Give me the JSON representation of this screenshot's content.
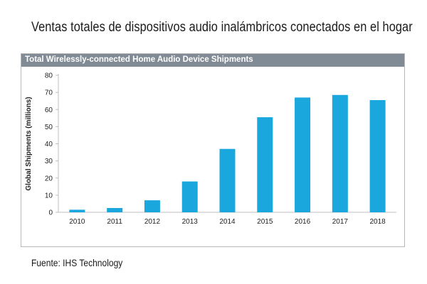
{
  "page_title": "Ventas totales de dispositivos audio inalámbricos conectados en el hogar",
  "source": "Fuente: IHS Technology",
  "colors": {
    "bar": "#1aa7dd",
    "header": "#808b95",
    "axis": "#bfbfbf"
  },
  "chart_data": {
    "type": "bar",
    "title": "Total Wirelessly-connected Home Audio Device Shipments",
    "xlabel": "",
    "ylabel": "Global Shipments (millions)",
    "categories": [
      "2010",
      "2011",
      "2012",
      "2013",
      "2014",
      "2015",
      "2016",
      "2017",
      "2018"
    ],
    "values": [
      1.5,
      2.5,
      7,
      18,
      37,
      55.5,
      67,
      68.5,
      65.5
    ],
    "ylim": [
      0,
      80
    ],
    "yticks": [
      0,
      10,
      20,
      30,
      40,
      50,
      60,
      70,
      80
    ],
    "grid": false,
    "legend": "none"
  }
}
